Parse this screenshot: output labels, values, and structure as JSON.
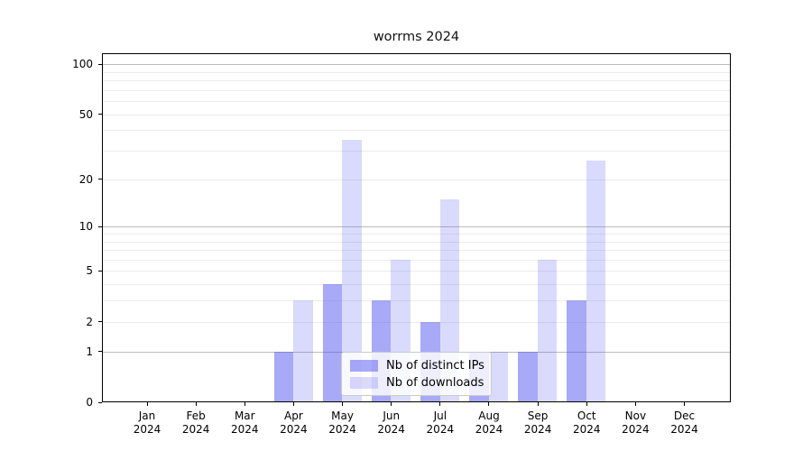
{
  "figure": {
    "background_color": "#ffffff"
  },
  "chart_data": {
    "type": "bar",
    "title": "worrms 2024",
    "x_year": "2024",
    "categories": [
      "Jan",
      "Feb",
      "Mar",
      "Apr",
      "May",
      "Jun",
      "Jul",
      "Aug",
      "Sep",
      "Oct",
      "Nov",
      "Dec"
    ],
    "series": [
      {
        "name": "Nb of distinct IPs",
        "color": "rgba(70,72,238,0.47)",
        "solid_hex": "#a8a9f5",
        "values": [
          0,
          0,
          0,
          1,
          4,
          3,
          2,
          1,
          1,
          3,
          0,
          0
        ]
      },
      {
        "name": "Nb of downloads",
        "color": "rgba(70,72,238,0.20)",
        "solid_hex": "#dcddfa",
        "values": [
          0,
          0,
          0,
          3,
          35,
          6,
          15,
          1,
          6,
          26,
          0,
          0
        ]
      }
    ],
    "y_scale": "log10(1+x)",
    "ylim": [
      0,
      100
    ],
    "y_ticks": [
      0,
      1,
      2,
      5,
      10,
      20,
      50,
      100
    ],
    "grid": {
      "major": [
        1,
        10,
        100
      ],
      "minor": [
        2,
        3,
        4,
        5,
        6,
        7,
        8,
        9,
        20,
        30,
        40,
        50,
        60,
        70,
        80,
        90
      ],
      "major_color": "#bdbdbd",
      "minor_color": "#ececec"
    },
    "legend_position": "bottom-center-inside"
  }
}
